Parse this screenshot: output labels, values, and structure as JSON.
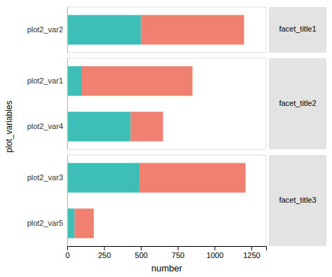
{
  "chart_data": [
    {
      "type": "bar",
      "orientation": "horizontal",
      "stacked": true,
      "title": "facet_title1",
      "categories": [
        "plot2_var2"
      ],
      "series": [
        {
          "color": "#3dbfb8",
          "values": [
            500
          ]
        },
        {
          "color": "#f08070",
          "values": [
            700
          ]
        }
      ],
      "xlim": [
        0,
        1350
      ],
      "tick_labels": "y"
    },
    {
      "type": "bar",
      "orientation": "horizontal",
      "stacked": true,
      "title": "facet_title2",
      "ylabel": "plot_variables",
      "categories": [
        "plot2_var1",
        "plot2_var4"
      ],
      "series": [
        {
          "color": "#3dbfb8",
          "values": [
            100,
            430
          ]
        },
        {
          "color": "#f08070",
          "values": [
            750,
            220
          ]
        }
      ],
      "xlim": [
        0,
        1350
      ],
      "tick_labels": "y"
    },
    {
      "type": "bar",
      "orientation": "horizontal",
      "stacked": true,
      "title": "facet_title3",
      "xlabel": "number",
      "categories": [
        "plot2_var3",
        "plot2_var5"
      ],
      "series": [
        {
          "color": "#3dbfb8",
          "values": [
            490,
            50
          ]
        },
        {
          "color": "#f08070",
          "values": [
            720,
            130
          ]
        }
      ],
      "xlim": [
        0,
        1350
      ],
      "xticks": [
        0,
        250,
        500,
        750,
        1000,
        1250
      ]
    }
  ]
}
